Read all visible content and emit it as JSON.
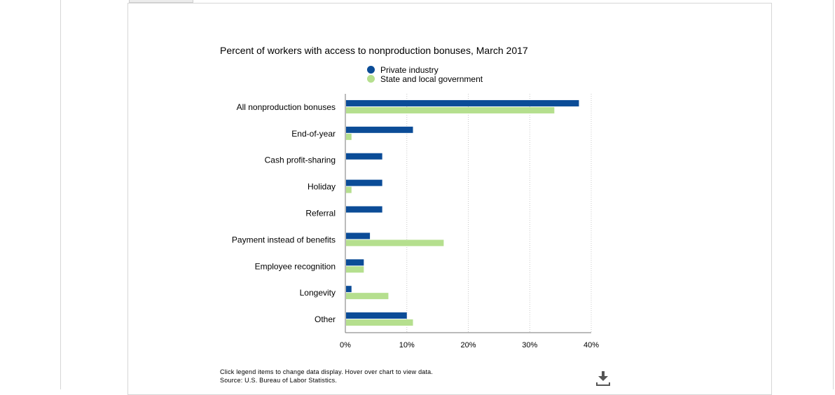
{
  "footnote": {
    "instructions": "Click legend items to change data display. Hover over chart to view data.",
    "source": "Source: U.S. Bureau of Labor Statistics."
  },
  "icons": {
    "download": "download-icon"
  },
  "colors": {
    "private": "#0b4c97",
    "government": "#b5df8e",
    "grid": "#c8c8c8",
    "axis": "#777777"
  },
  "chart_data": {
    "type": "bar",
    "orientation": "horizontal",
    "title": "Percent of workers with access to nonproduction bonuses, March 2017",
    "categories": [
      "All nonproduction bonuses",
      "End-of-year",
      "Cash profit-sharing",
      "Holiday",
      "Referral",
      "Payment instead of benefits",
      "Employee recognition",
      "Longevity",
      "Other"
    ],
    "series": [
      {
        "name": "Private industry",
        "values": [
          38,
          11,
          6,
          6,
          6,
          4,
          3,
          1,
          10
        ]
      },
      {
        "name": "State and local government",
        "values": [
          34,
          1,
          0,
          1,
          0,
          16,
          3,
          7,
          11
        ]
      }
    ],
    "xlim": [
      0,
      40
    ],
    "xticks": [
      "0%",
      "10%",
      "20%",
      "30%",
      "40%"
    ],
    "xlabel": "",
    "ylabel": "",
    "grid": true,
    "legend_position": "top-center"
  }
}
